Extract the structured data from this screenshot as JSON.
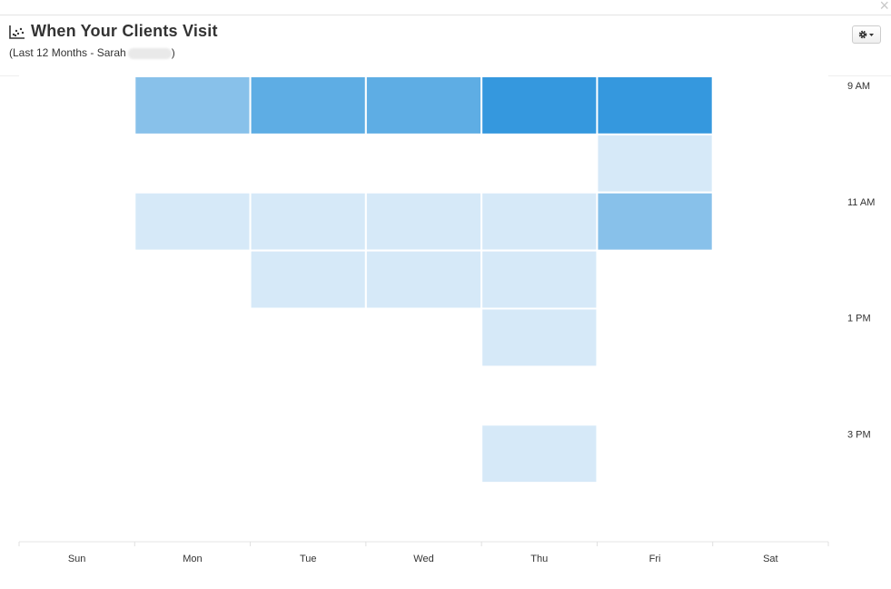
{
  "header": {
    "title": "When Your Clients Visit",
    "subtitle": "(Last 12 Months - Sarah",
    "subtitle_end": ")",
    "title_icon": "scatter-chart-icon",
    "settings_icon": "gear-icon",
    "close_icon": "close-icon"
  },
  "chart_data": {
    "type": "heatmap",
    "title": "When Your Clients Visit",
    "subtitle": "(Last 12 Months - Sarah )",
    "x_categories": [
      "Sun",
      "Mon",
      "Tue",
      "Wed",
      "Thu",
      "Fri",
      "Sat"
    ],
    "y_tick_labels": [
      "9 AM",
      "11 AM",
      "1 PM",
      "3 PM"
    ],
    "y_tick_hours": [
      9,
      11,
      13,
      15
    ],
    "y_range_hours": [
      8.5,
      16.5
    ],
    "legend": "none",
    "grid": false,
    "colors": {
      "level1": "#d6e9f8",
      "level2": "#88c1ea",
      "level3": "#5eadE4",
      "level4": "#3598de"
    },
    "cells": [
      {
        "day": "Mon",
        "hour": 9,
        "level": 2
      },
      {
        "day": "Tue",
        "hour": 9,
        "level": 3
      },
      {
        "day": "Wed",
        "hour": 9,
        "level": 3
      },
      {
        "day": "Thu",
        "hour": 9,
        "level": 4
      },
      {
        "day": "Fri",
        "hour": 9,
        "level": 4
      },
      {
        "day": "Fri",
        "hour": 10,
        "level": 1
      },
      {
        "day": "Mon",
        "hour": 11,
        "level": 1
      },
      {
        "day": "Tue",
        "hour": 11,
        "level": 1
      },
      {
        "day": "Wed",
        "hour": 11,
        "level": 1
      },
      {
        "day": "Thu",
        "hour": 11,
        "level": 1
      },
      {
        "day": "Fri",
        "hour": 11,
        "level": 2
      },
      {
        "day": "Tue",
        "hour": 12,
        "level": 1
      },
      {
        "day": "Wed",
        "hour": 12,
        "level": 1
      },
      {
        "day": "Thu",
        "hour": 12,
        "level": 1
      },
      {
        "day": "Thu",
        "hour": 13,
        "level": 1
      },
      {
        "day": "Thu",
        "hour": 15,
        "level": 1
      }
    ]
  }
}
